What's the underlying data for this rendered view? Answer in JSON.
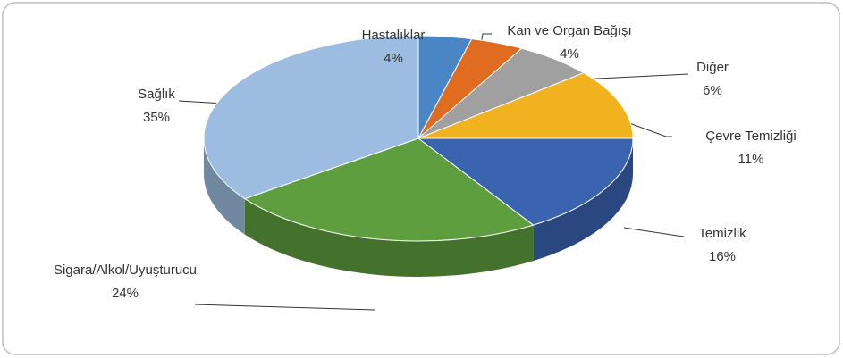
{
  "chart_data": {
    "type": "pie",
    "categories": [
      "Hastalıklar",
      "Kan ve Organ Bağışı",
      "Diğer",
      "Çevre Temizliği",
      "Temizlik",
      "Sigara/Alkol/Uyuşturucu",
      "Sağlık"
    ],
    "values": [
      4,
      4,
      6,
      11,
      16,
      24,
      35
    ],
    "value_labels": [
      "4%",
      "4%",
      "6%",
      "11%",
      "16%",
      "24%",
      "35%"
    ],
    "colors": [
      "#4a86c5",
      "#e06c22",
      "#a0a0a0",
      "#f0b21f",
      "#3a64b0",
      "#5f9e3f",
      "#9dbde0"
    ]
  }
}
